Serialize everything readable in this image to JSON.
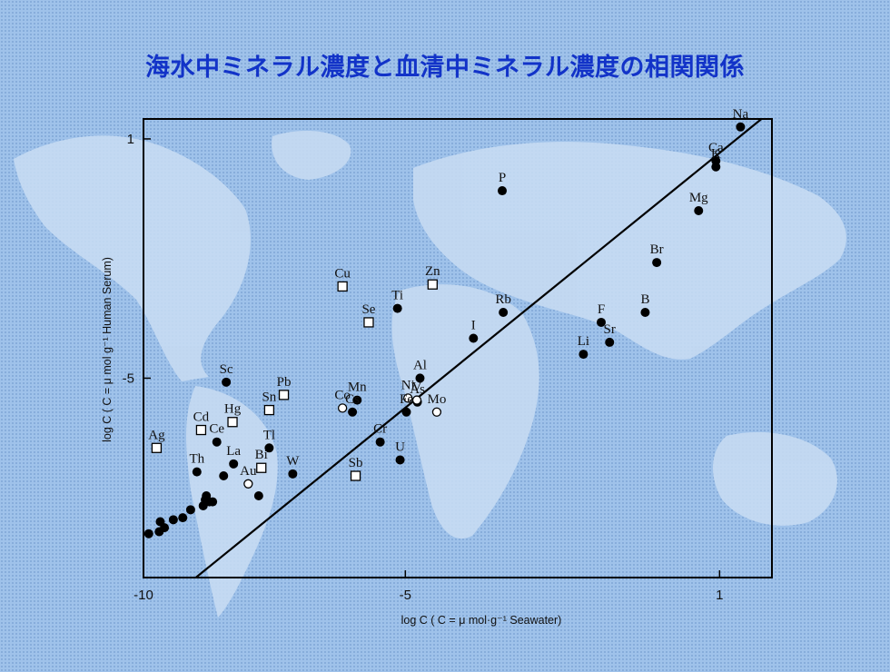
{
  "title": "海水中ミネラル濃度と血清中ミネラル濃度の相関関係",
  "chart_data": {
    "type": "scatter",
    "xlabel": "log C ( C = μ mol·g⁻¹   Seawater)",
    "ylabel": "log C ( C = μ mol g⁻¹   Human Serum)",
    "xlim": [
      -10.0,
      2.0
    ],
    "ylim": [
      -10.0,
      1.5
    ],
    "x_ticks": [
      -10,
      -5,
      1
    ],
    "y_ticks": [
      1,
      -5
    ],
    "grid": false,
    "reference_line": [
      [
        -9.0,
        -10.0
      ],
      [
        1.8,
        1.5
      ]
    ],
    "series": [
      {
        "marker": "filled-circle",
        "points": [
          {
            "label": "Na",
            "x": 1.4,
            "y": 1.3
          },
          {
            "label": "K",
            "x": 0.93,
            "y": 0.3
          },
          {
            "label": "Ca",
            "x": 0.93,
            "y": 0.45
          },
          {
            "label": "Mg",
            "x": 0.6,
            "y": -0.8
          },
          {
            "label": "Br",
            "x": -0.2,
            "y": -2.1
          },
          {
            "label": "B",
            "x": -0.42,
            "y": -3.35
          },
          {
            "label": "F",
            "x": -1.26,
            "y": -3.6
          },
          {
            "label": "Sr",
            "x": -1.1,
            "y": -4.1
          },
          {
            "label": "Li",
            "x": -1.6,
            "y": -4.4
          },
          {
            "label": "P",
            "x": -3.15,
            "y": -0.3
          },
          {
            "label": "Rb",
            "x": -3.13,
            "y": -3.35
          },
          {
            "label": "I",
            "x": -3.7,
            "y": -4.0
          },
          {
            "label": "Ti",
            "x": -5.15,
            "y": -3.25
          },
          {
            "label": "Al",
            "x": -4.72,
            "y": -5.0
          },
          {
            "label": "As",
            "x": -4.77,
            "y": -5.6
          },
          {
            "label": "Fe",
            "x": -4.98,
            "y": -5.85
          },
          {
            "label": "Cr",
            "x": -5.48,
            "y": -6.6
          },
          {
            "label": "U",
            "x": -5.1,
            "y": -7.05
          },
          {
            "label": "Mn",
            "x": -5.92,
            "y": -5.55
          },
          {
            "label": "Cs",
            "x": -6.01,
            "y": -5.85
          },
          {
            "label": "W",
            "x": -7.15,
            "y": -7.4
          },
          {
            "label": "Sc",
            "x": -8.42,
            "y": -5.1
          },
          {
            "label": "La",
            "x": -8.28,
            "y": -7.15
          },
          {
            "label": "Ce",
            "x": -8.6,
            "y": -6.6
          },
          {
            "label": "Th",
            "x": -8.98,
            "y": -7.35
          },
          {
            "label": "Tl",
            "x": -7.6,
            "y": -6.75
          },
          {
            "label": "",
            "x": -8.47,
            "y": -7.45
          },
          {
            "label": "",
            "x": -7.8,
            "y": -7.95
          },
          {
            "label": "",
            "x": -8.8,
            "y": -7.95
          },
          {
            "label": "",
            "x": -8.74,
            "y": -8.1
          },
          {
            "label": "",
            "x": -8.86,
            "y": -8.2
          },
          {
            "label": "",
            "x": -8.82,
            "y": -8.05
          },
          {
            "label": "",
            "x": -8.68,
            "y": -8.1
          },
          {
            "label": "",
            "x": -9.1,
            "y": -8.3
          },
          {
            "label": "",
            "x": -9.25,
            "y": -8.5
          },
          {
            "label": "",
            "x": -9.43,
            "y": -8.55
          },
          {
            "label": "",
            "x": -9.6,
            "y": -8.75
          },
          {
            "label": "",
            "x": -9.68,
            "y": -8.6
          },
          {
            "label": "",
            "x": -9.7,
            "y": -8.85
          },
          {
            "label": "",
            "x": -9.9,
            "y": -8.9
          }
        ]
      },
      {
        "marker": "open-circle",
        "points": [
          {
            "label": "Co",
            "x": -6.2,
            "y": -5.75
          },
          {
            "label": "Ni",
            "x": -4.95,
            "y": -5.5
          },
          {
            "label": "V",
            "x": -4.78,
            "y": -5.55
          },
          {
            "label": "Mo",
            "x": -4.4,
            "y": -5.85
          },
          {
            "label": "Au",
            "x": -8.0,
            "y": -7.65
          }
        ]
      },
      {
        "marker": "open-square",
        "points": [
          {
            "label": "Cu",
            "x": -6.2,
            "y": -2.7
          },
          {
            "label": "Zn",
            "x": -4.48,
            "y": -2.65
          },
          {
            "label": "Se",
            "x": -5.7,
            "y": -3.6
          },
          {
            "label": "Pb",
            "x": -7.32,
            "y": -5.42
          },
          {
            "label": "Sn",
            "x": -7.6,
            "y": -5.8
          },
          {
            "label": "Hg",
            "x": -8.3,
            "y": -6.1
          },
          {
            "label": "Cd",
            "x": -8.9,
            "y": -6.3
          },
          {
            "label": "Ag",
            "x": -9.75,
            "y": -6.75
          },
          {
            "label": "Bi",
            "x": -7.75,
            "y": -7.25
          },
          {
            "label": "Sb",
            "x": -5.95,
            "y": -7.45
          }
        ]
      }
    ]
  }
}
